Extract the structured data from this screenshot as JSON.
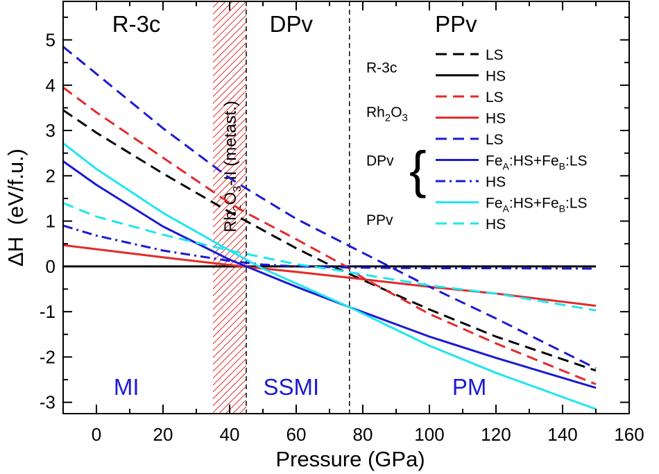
{
  "chart_data": {
    "type": "line",
    "xlabel": "Pressure (GPa)",
    "ylabel_parts": [
      "ΔH",
      "(eV/f.u.)"
    ],
    "xlim": [
      -10,
      160
    ],
    "ylim": [
      -3.25,
      5.85
    ],
    "xticks": [
      0,
      20,
      40,
      60,
      80,
      100,
      120,
      140,
      160
    ],
    "yticks": [
      -3,
      -2,
      -1,
      0,
      1,
      2,
      3,
      4,
      5
    ],
    "xtick_labels": [
      "0",
      "20",
      "40",
      "60",
      "80",
      "100",
      "120",
      "140",
      "160"
    ],
    "ytick_labels": [
      "-3",
      "-2",
      "-1",
      "0",
      "1",
      "2",
      "3",
      "4",
      "5"
    ],
    "phase_boundaries": [
      45,
      76
    ],
    "metastable_band": {
      "range": [
        35,
        45
      ],
      "parts": [
        "Rh",
        "2",
        "O",
        "3",
        "-II (metast.)"
      ],
      "color": "#e32a2a"
    },
    "phase_labels": [
      {
        "text": "R-3c",
        "x": 12
      },
      {
        "text": "DPv",
        "x": 58.5
      },
      {
        "text": "PPv",
        "x": 108
      }
    ],
    "region_labels": [
      {
        "text": "MI",
        "x": 9,
        "y": -2.65
      },
      {
        "text": "SSMI",
        "x": 58.5,
        "y": -2.65
      },
      {
        "text": "PM",
        "x": 112,
        "y": -2.65
      }
    ],
    "series": [
      {
        "name": "R-3c HS",
        "color": "#000000",
        "dash": "solid",
        "x": [
          -10,
          150
        ],
        "y": [
          0,
          0
        ]
      },
      {
        "name": "R-3c LS",
        "color": "#000000",
        "dash": "dashed",
        "x": [
          -10,
          0,
          20,
          40,
          45,
          60,
          71,
          80,
          100,
          120,
          150
        ],
        "y": [
          3.45,
          2.95,
          2.05,
          1.2,
          1.0,
          0.4,
          0.0,
          -0.3,
          -0.95,
          -1.55,
          -2.3
        ]
      },
      {
        "name": "Rh2O3 HS",
        "color": "#e32a2a",
        "dash": "solid",
        "x": [
          -10,
          0,
          20,
          40,
          45,
          60,
          77,
          100,
          120,
          150
        ],
        "y": [
          0.47,
          0.38,
          0.2,
          0.03,
          -0.01,
          -0.12,
          -0.26,
          -0.45,
          -0.6,
          -0.87
        ]
      },
      {
        "name": "Rh2O3 LS",
        "color": "#e32a2a",
        "dash": "dashed",
        "x": [
          -10,
          0,
          20,
          40,
          45,
          60,
          75,
          80,
          100,
          120,
          150
        ],
        "y": [
          3.95,
          3.4,
          2.4,
          1.4,
          1.18,
          0.6,
          0.0,
          -0.25,
          -1.05,
          -1.7,
          -2.6
        ]
      },
      {
        "name": "DPv LS",
        "color": "#1a1ad4",
        "dash": "dashed",
        "x": [
          -10,
          0,
          20,
          40,
          45,
          60,
          80,
          88,
          100,
          120,
          150
        ],
        "y": [
          4.85,
          4.25,
          3.05,
          1.95,
          1.72,
          1.05,
          0.3,
          0.0,
          -0.45,
          -1.15,
          -2.25
        ]
      },
      {
        "name": "DPv FeA:HS+FeB:LS",
        "color": "#1a1ad4",
        "dash": "solid",
        "x": [
          -10,
          0,
          20,
          40,
          45,
          60,
          76,
          100,
          120,
          150
        ],
        "y": [
          2.32,
          1.8,
          0.88,
          0.15,
          0.0,
          -0.45,
          -0.9,
          -1.55,
          -2.02,
          -2.68
        ]
      },
      {
        "name": "DPv HS",
        "color": "#1a1ad4",
        "dash": "dashdot",
        "x": [
          -10,
          0,
          20,
          40,
          50,
          60,
          80,
          100,
          120,
          150
        ],
        "y": [
          0.9,
          0.68,
          0.35,
          0.12,
          0.04,
          0.0,
          -0.03,
          -0.04,
          -0.04,
          -0.05
        ]
      },
      {
        "name": "PPv FeA:HS+FeB:LS",
        "color": "#1fe6f0",
        "dash": "solid",
        "x": [
          -10,
          0,
          20,
          40,
          45,
          50,
          76,
          100,
          120,
          150
        ],
        "y": [
          2.72,
          2.15,
          1.18,
          0.35,
          0.15,
          -0.05,
          -0.9,
          -1.75,
          -2.35,
          -3.15
        ]
      },
      {
        "name": "PPv HS",
        "color": "#1fe6f0",
        "dash": "dashed",
        "x": [
          -10,
          0,
          20,
          40,
          60,
          72,
          80,
          100,
          120,
          150
        ],
        "y": [
          1.4,
          1.1,
          0.7,
          0.35,
          0.05,
          -0.08,
          -0.18,
          -0.42,
          -0.6,
          -0.97
        ]
      }
    ]
  },
  "legend": {
    "entries": [
      {
        "group": "R-3c",
        "group_parts": [
          "R-3c"
        ],
        "label_parts": [
          "LS"
        ],
        "color": "#000000",
        "dash": "dashed"
      },
      {
        "group": "",
        "group_parts": [],
        "label_parts": [
          "HS"
        ],
        "color": "#000000",
        "dash": "solid"
      },
      {
        "group": "Rh2O3",
        "group_parts": [
          "Rh",
          "2",
          "O",
          "3"
        ],
        "label_parts": [
          "LS"
        ],
        "color": "#e32a2a",
        "dash": "dashed"
      },
      {
        "group": "",
        "group_parts": [],
        "label_parts": [
          "HS"
        ],
        "color": "#e32a2a",
        "dash": "solid"
      },
      {
        "group": "",
        "group_parts": [],
        "label_parts": [
          "LS"
        ],
        "color": "#1a1ad4",
        "dash": "dashed"
      },
      {
        "group": "DPv",
        "group_parts": [
          "DPv"
        ],
        "label_parts": [
          "Fe",
          "A",
          ":HS+Fe",
          "B",
          ":LS"
        ],
        "color": "#1a1ad4",
        "dash": "solid"
      },
      {
        "group": "",
        "group_parts": [],
        "label_parts": [
          "HS"
        ],
        "color": "#1a1ad4",
        "dash": "dashdot"
      },
      {
        "group": "PPv",
        "group_parts": [
          "PPv"
        ],
        "label_parts": [
          "Fe",
          "A",
          ":HS+Fe",
          "B",
          ":LS"
        ],
        "color": "#1fe6f0",
        "dash": "solid"
      },
      {
        "group": "",
        "group_parts": [],
        "label_parts": [
          "HS"
        ],
        "color": "#1fe6f0",
        "dash": "dashed"
      }
    ],
    "brace_glyph": "{"
  },
  "colors": {
    "region_text": "#1a1ad4",
    "axes": "#000000",
    "band": "#e32a2a"
  }
}
